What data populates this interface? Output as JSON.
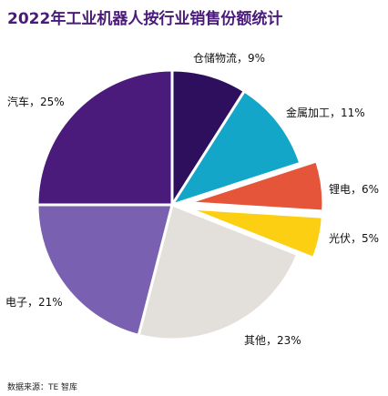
{
  "chart_data": {
    "type": "pie",
    "title": "2022年工业机器人按行业销售份额统计",
    "slices": [
      {
        "name": "仓储物流",
        "value": 9,
        "label": "仓储物流，9%",
        "color": "#2e0f5e"
      },
      {
        "name": "金属加工",
        "value": 11,
        "label": "金属加工，11%",
        "color": "#13a6c8"
      },
      {
        "name": "锂电",
        "value": 6,
        "label": "锂电，6%",
        "color": "#e5553a"
      },
      {
        "name": "光伏",
        "value": 5,
        "label": "光伏，5%",
        "color": "#fdcf12"
      },
      {
        "name": "其他",
        "value": 23,
        "label": "其他，23%",
        "color": "#e3e0dc"
      },
      {
        "name": "电子",
        "value": 21,
        "label": "电子，21%",
        "color": "#7a60b0"
      },
      {
        "name": "汽车",
        "value": 25,
        "label": "汽车，25%",
        "color": "#4b1b7c"
      }
    ]
  },
  "source": "数据来源：TE 智库"
}
